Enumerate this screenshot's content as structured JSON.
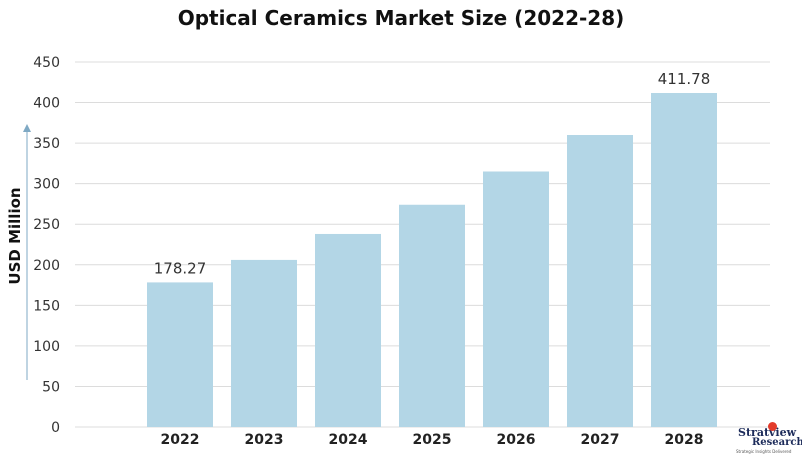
{
  "chart_data": {
    "type": "bar",
    "title": "Optical Ceramics Market Size (2022-28)",
    "ylabel": "USD Million",
    "xlabel": "",
    "categories": [
      "2022",
      "2023",
      "2024",
      "2025",
      "2026",
      "2027",
      "2028"
    ],
    "values": [
      178.27,
      206,
      238,
      274,
      315,
      360,
      411.78
    ],
    "data_labels": [
      "178.27",
      "",
      "",
      "",
      "",
      "",
      "411.78"
    ],
    "yticks": [
      "0",
      "50",
      "100",
      "150",
      "200",
      "250",
      "300",
      "350",
      "400",
      "450"
    ],
    "ylim": [
      0,
      450
    ],
    "grid": true,
    "bar_color": "#b3d6e6",
    "grid_color": "#dcdcdc",
    "legend": "none"
  },
  "logo": {
    "name": "Stratview",
    "sub": "Research",
    "tagline": "Strategic Insights Delivered"
  }
}
